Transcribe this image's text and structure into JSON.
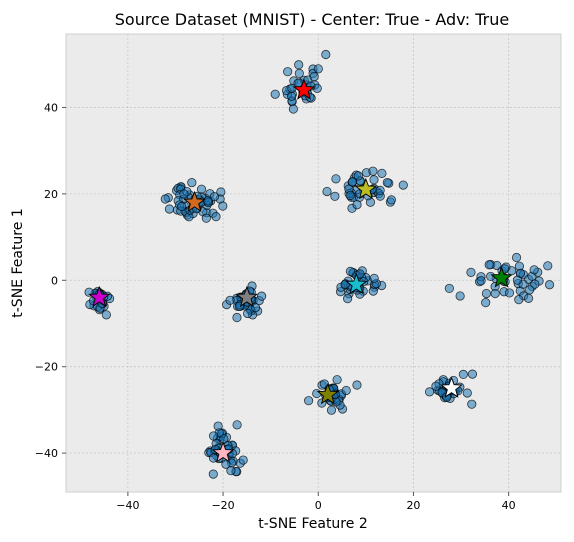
{
  "chart_data": {
    "type": "scatter",
    "title": "Source Dataset (MNIST) - Center: True - Adv: True",
    "xlabel": "t-SNE Feature 2",
    "ylabel": "t-SNE Feature 1",
    "xlim": [
      -53,
      51
    ],
    "ylim": [
      -49,
      57
    ],
    "xticks": [
      -40,
      -20,
      0,
      20,
      40
    ],
    "yticks": [
      -40,
      -20,
      0,
      20,
      40
    ],
    "xtick_labels": [
      "−40",
      "−20",
      "0",
      "20",
      "40"
    ],
    "ytick_labels": [
      "−40",
      "−20",
      "0",
      "20",
      "40"
    ],
    "grid": true,
    "background": "#ebebeb",
    "point_color": "#1f77b4",
    "clusters": [
      {
        "cx": -3.5,
        "cy": 45.5,
        "count": 34,
        "sx": 2.2,
        "sy": 3.4,
        "seed": 11
      },
      {
        "cx": 10.5,
        "cy": 21.0,
        "count": 42,
        "sx": 3.2,
        "sy": 1.7,
        "seed": 23
      },
      {
        "cx": -26.0,
        "cy": 18.0,
        "count": 55,
        "sx": 2.6,
        "sy": 1.9,
        "seed": 37
      },
      {
        "cx": -46.0,
        "cy": -4.5,
        "count": 26,
        "sx": 1.3,
        "sy": 1.5,
        "seed": 41
      },
      {
        "cx": -15.0,
        "cy": -4.8,
        "count": 44,
        "sx": 1.6,
        "sy": 1.6,
        "seed": 53
      },
      {
        "cx": 8.5,
        "cy": -1.0,
        "count": 36,
        "sx": 2.2,
        "sy": 1.6,
        "seed": 67
      },
      {
        "cx": 40.0,
        "cy": 0.5,
        "count": 46,
        "sx": 4.0,
        "sy": 2.3,
        "seed": 79
      },
      {
        "cx": 27.5,
        "cy": -25.5,
        "count": 34,
        "sx": 2.0,
        "sy": 1.5,
        "seed": 83
      },
      {
        "cx": 2.0,
        "cy": -26.5,
        "count": 40,
        "sx": 2.0,
        "sy": 1.7,
        "seed": 97
      },
      {
        "cx": -20.0,
        "cy": -39.0,
        "count": 46,
        "sx": 1.8,
        "sy": 2.7,
        "seed": 101
      }
    ],
    "centroids": [
      {
        "x": -3.0,
        "y": 44.0,
        "color": "#ff0000"
      },
      {
        "x": 10.0,
        "y": 21.0,
        "color": "#bcbd22"
      },
      {
        "x": -26.0,
        "y": 18.0,
        "color": "#d2691e"
      },
      {
        "x": -46.0,
        "y": -4.0,
        "color": "#cc00cc"
      },
      {
        "x": -15.0,
        "y": -4.0,
        "color": "#7f7f7f"
      },
      {
        "x": 8.0,
        "y": -1.0,
        "color": "#17becf"
      },
      {
        "x": 38.5,
        "y": 0.5,
        "color": "#008000"
      },
      {
        "x": 28.0,
        "y": -25.0,
        "color": "#ffffff"
      },
      {
        "x": 2.0,
        "y": -26.5,
        "color": "#808000"
      },
      {
        "x": -20.0,
        "y": -40.0,
        "color": "#ffb6c1"
      }
    ]
  }
}
